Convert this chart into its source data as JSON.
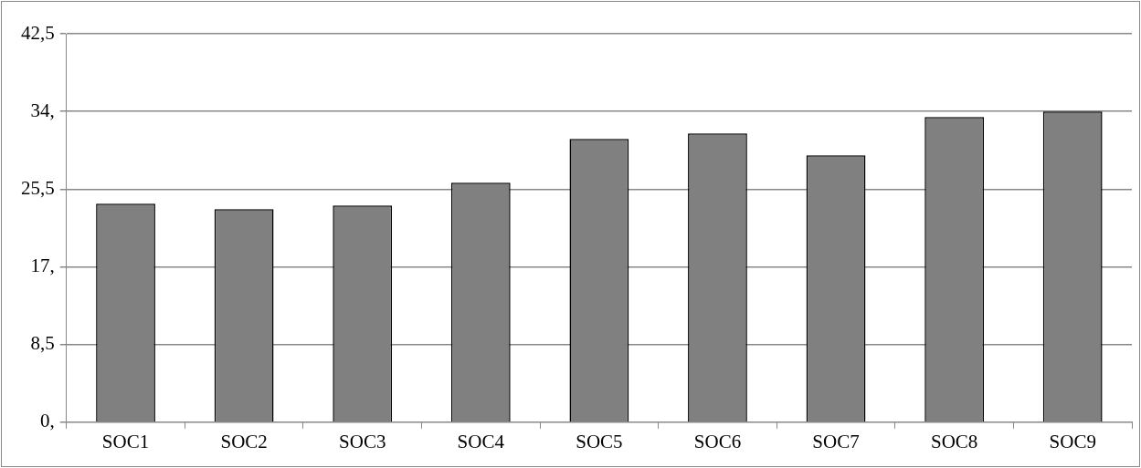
{
  "chart_data": {
    "type": "bar",
    "categories": [
      "SOC1",
      "SOC2",
      "SOC3",
      "SOC4",
      "SOC5",
      "SOC6",
      "SOC7",
      "SOC8",
      "SOC9"
    ],
    "series": [
      {
        "color": "#808080",
        "values": [
          23.9,
          23.3,
          23.7,
          26.2,
          31.0,
          31.6,
          29.2,
          33.4,
          34.0
        ]
      }
    ],
    "ylim": [
      0,
      42.5
    ],
    "yticks": [
      {
        "value": 0,
        "label": "0,"
      },
      {
        "value": 8.5,
        "label": "8,5"
      },
      {
        "value": 17,
        "label": "17,"
      },
      {
        "value": 25.5,
        "label": "25,5"
      },
      {
        "value": 34,
        "label": "34,"
      },
      {
        "value": 42.5,
        "label": "42,5"
      }
    ],
    "grid": "y",
    "legend": false
  }
}
